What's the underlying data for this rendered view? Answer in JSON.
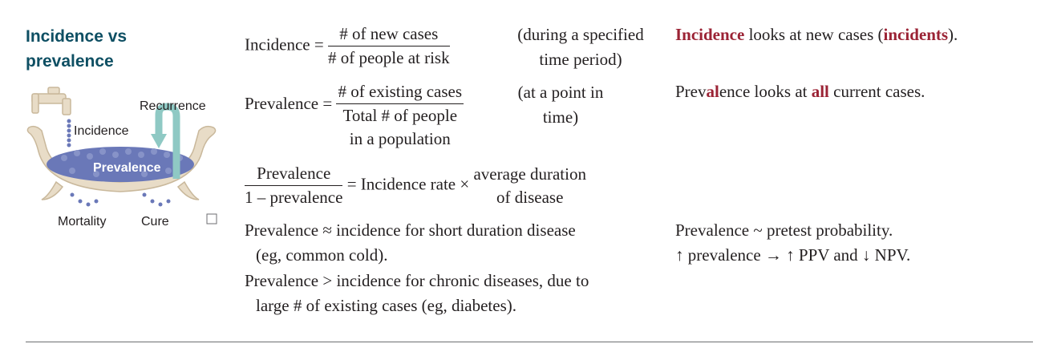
{
  "heading": {
    "line1": "Incidence vs",
    "line2": "prevalence"
  },
  "illustration": {
    "recurrence_label": "Recurrence",
    "incidence_label": "Incidence",
    "prevalence_label": "Prevalence",
    "mortality_label": "Mortality",
    "cure_label": "Cure",
    "colors": {
      "bath": "#e8dcc7",
      "bath_outline": "#c9b89b",
      "balls": "#6a78b8",
      "arrow": "#8fc9c4"
    }
  },
  "formulas": {
    "incidence": {
      "lhs": "Incidence =",
      "numerator": "# of new cases",
      "denominator": "# of people at risk",
      "note_line1": "(during a specified",
      "note_line2": "time period)"
    },
    "prevalence": {
      "lhs": "Prevalence =",
      "numerator": "# of existing cases",
      "denominator_line1": "Total # of people",
      "denominator_line2": "in a population",
      "note_line1": "(at a point in",
      "note_line2": "time)"
    },
    "ratio": {
      "numerator": "Prevalence",
      "denominator": "1 – prevalence",
      "equals": "=",
      "middle": "Incidence rate ×",
      "right_line1": "average duration",
      "right_line2": "of disease"
    },
    "statement1_line1": "Prevalence ≈ incidence for short duration disease",
    "statement1_line2": "(eg, common cold).",
    "statement2_line1": "Prevalence > incidence for chronic diseases, due to",
    "statement2_line2": "large # of existing cases (eg, diabetes)."
  },
  "notes": {
    "n1_part1": "Incidence",
    "n1_part2": " looks at new cases (",
    "n1_part3": "incidents",
    "n1_part4": ").",
    "n2_part1": "Prev",
    "n2_part2": "al",
    "n2_part3": "ence looks at ",
    "n2_part4": "all",
    "n2_part5": " current cases.",
    "n3": "Prevalence ~ pretest probability.",
    "n4": "↑ prevalence → ↑ PPV and ↓ NPV."
  },
  "colors": {
    "heading": "#0e4f63",
    "emphasis": "#9b2335",
    "text": "#231f20"
  }
}
